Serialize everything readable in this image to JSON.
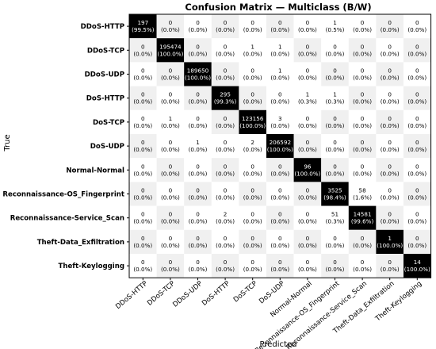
{
  "chart_data": {
    "type": "heatmap",
    "title": "Confusion Matrix — Multiclass (B/W)",
    "xlabel": "Predicted",
    "ylabel": "True",
    "labels": [
      "DDoS-HTTP",
      "DDoS-TCP",
      "DDoS-UDP",
      "DoS-HTTP",
      "DoS-TCP",
      "DoS-UDP",
      "Normal-Normal",
      "Reconnaissance-OS_Fingerprint",
      "Reconnaissance-Service_Scan",
      "Theft-Data_Exfiltration",
      "Theft-Keylogging"
    ],
    "counts": [
      [
        197,
        0,
        0,
        0,
        0,
        0,
        0,
        1,
        0,
        0,
        0
      ],
      [
        0,
        195474,
        0,
        0,
        1,
        1,
        0,
        0,
        0,
        0,
        0
      ],
      [
        0,
        0,
        189650,
        0,
        0,
        1,
        0,
        0,
        0,
        0,
        0
      ],
      [
        0,
        0,
        0,
        295,
        0,
        0,
        1,
        1,
        0,
        0,
        0
      ],
      [
        0,
        1,
        0,
        0,
        123156,
        3,
        0,
        0,
        0,
        0,
        0
      ],
      [
        0,
        0,
        1,
        0,
        2,
        206592,
        0,
        0,
        0,
        0,
        0
      ],
      [
        0,
        0,
        0,
        0,
        0,
        0,
        96,
        0,
        0,
        0,
        0
      ],
      [
        0,
        0,
        0,
        0,
        0,
        0,
        0,
        3525,
        58,
        0,
        0
      ],
      [
        0,
        0,
        0,
        2,
        0,
        0,
        0,
        51,
        14581,
        0,
        0
      ],
      [
        0,
        0,
        0,
        0,
        0,
        0,
        0,
        0,
        0,
        1,
        0
      ],
      [
        0,
        0,
        0,
        0,
        0,
        0,
        0,
        0,
        0,
        0,
        14
      ]
    ],
    "percents": [
      [
        "99.5%",
        "0.0%",
        "0.0%",
        "0.0%",
        "0.0%",
        "0.0%",
        "0.0%",
        "0.5%",
        "0.0%",
        "0.0%",
        "0.0%"
      ],
      [
        "0.0%",
        "100.0%",
        "0.0%",
        "0.0%",
        "0.0%",
        "0.0%",
        "0.0%",
        "0.0%",
        "0.0%",
        "0.0%",
        "0.0%"
      ],
      [
        "0.0%",
        "0.0%",
        "100.0%",
        "0.0%",
        "0.0%",
        "0.0%",
        "0.0%",
        "0.0%",
        "0.0%",
        "0.0%",
        "0.0%"
      ],
      [
        "0.0%",
        "0.0%",
        "0.0%",
        "99.3%",
        "0.0%",
        "0.0%",
        "0.3%",
        "0.3%",
        "0.0%",
        "0.0%",
        "0.0%"
      ],
      [
        "0.0%",
        "0.0%",
        "0.0%",
        "0.0%",
        "100.0%",
        "0.0%",
        "0.0%",
        "0.0%",
        "0.0%",
        "0.0%",
        "0.0%"
      ],
      [
        "0.0%",
        "0.0%",
        "0.0%",
        "0.0%",
        "0.0%",
        "100.0%",
        "0.0%",
        "0.0%",
        "0.0%",
        "0.0%",
        "0.0%"
      ],
      [
        "0.0%",
        "0.0%",
        "0.0%",
        "0.0%",
        "0.0%",
        "0.0%",
        "100.0%",
        "0.0%",
        "0.0%",
        "0.0%",
        "0.0%"
      ],
      [
        "0.0%",
        "0.0%",
        "0.0%",
        "0.0%",
        "0.0%",
        "0.0%",
        "0.0%",
        "98.4%",
        "1.6%",
        "0.0%",
        "0.0%"
      ],
      [
        "0.0%",
        "0.0%",
        "0.0%",
        "0.0%",
        "0.0%",
        "0.0%",
        "0.0%",
        "0.3%",
        "99.6%",
        "0.0%",
        "0.0%"
      ],
      [
        "0.0%",
        "0.0%",
        "0.0%",
        "0.0%",
        "0.0%",
        "0.0%",
        "0.0%",
        "0.0%",
        "0.0%",
        "100.0%",
        "0.0%"
      ],
      [
        "0.0%",
        "0.0%",
        "0.0%",
        "0.0%",
        "0.0%",
        "0.0%",
        "0.0%",
        "0.0%",
        "0.0%",
        "0.0%",
        "100.0%"
      ]
    ],
    "colors": {
      "diagonal": "#000000",
      "off_diagonal_light": "#ffffff",
      "off_diagonal_shade": "#f0f0f0",
      "text_on_dark": "#ffffff",
      "text_on_light": "#000000"
    },
    "grid": false,
    "legend": "none"
  }
}
